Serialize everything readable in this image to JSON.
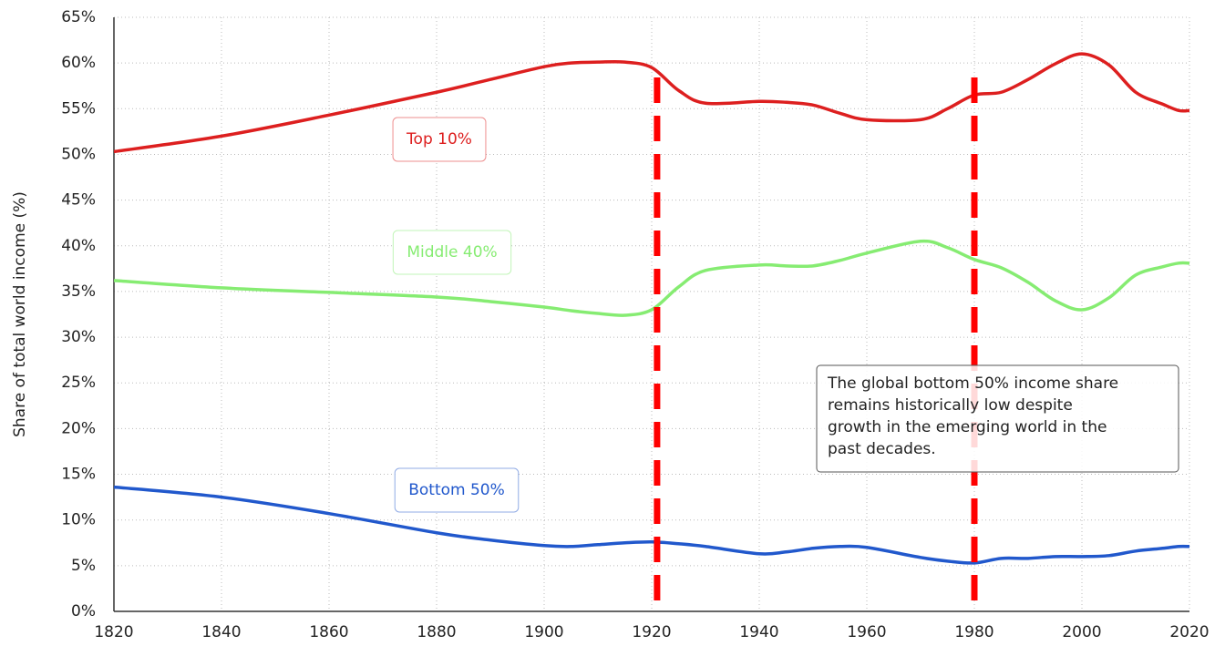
{
  "chart_data": {
    "type": "line",
    "y_label": "Share of total world income (%)",
    "x": [
      1820,
      1840,
      1860,
      1880,
      1890,
      1900,
      1905,
      1910,
      1915,
      1920,
      1925,
      1930,
      1940,
      1945,
      1950,
      1955,
      1960,
      1970,
      1975,
      1980,
      1985,
      1990,
      1995,
      2000,
      2005,
      2010,
      2015,
      2018,
      2020
    ],
    "series": [
      {
        "name": "Top 10%",
        "color": "#dd1f1f",
        "values": [
          50.3,
          52.0,
          54.3,
          56.8,
          58.2,
          59.6,
          60.0,
          60.1,
          60.1,
          59.5,
          57.0,
          55.6,
          55.8,
          55.7,
          55.4,
          54.5,
          53.8,
          53.8,
          55.0,
          56.5,
          56.8,
          58.2,
          59.9,
          61.0,
          59.8,
          56.8,
          55.5,
          54.8,
          54.8
        ]
      },
      {
        "name": "Middle 40%",
        "color": "#86ec72",
        "values": [
          36.2,
          35.4,
          34.9,
          34.4,
          33.9,
          33.3,
          32.9,
          32.6,
          32.4,
          33.0,
          35.5,
          37.3,
          37.9,
          37.8,
          37.8,
          38.4,
          39.2,
          40.5,
          39.8,
          38.5,
          37.6,
          36.0,
          34.0,
          33.0,
          34.3,
          36.8,
          37.7,
          38.1,
          38.1
        ]
      },
      {
        "name": "Bottom 50%",
        "color": "#2158cc",
        "values": [
          13.6,
          12.5,
          10.7,
          8.6,
          7.8,
          7.2,
          7.1,
          7.3,
          7.5,
          7.6,
          7.4,
          7.1,
          6.3,
          6.5,
          6.9,
          7.1,
          7.0,
          5.9,
          5.5,
          5.3,
          5.8,
          5.8,
          6.0,
          6.0,
          6.1,
          6.6,
          6.9,
          7.1,
          7.1
        ]
      }
    ],
    "vlines": {
      "color": "#ff0000",
      "x": [
        1921,
        1980
      ]
    },
    "annotation": [
      "The global bottom 50% income share",
      "remains historically low despite",
      "growth in the emerging world in the",
      "past decades."
    ],
    "xlim": [
      1820,
      2020
    ],
    "xticks": [
      1820,
      1840,
      1860,
      1880,
      1900,
      1920,
      1940,
      1960,
      1980,
      2000,
      2020
    ],
    "ylim": [
      0,
      65
    ],
    "yticks": [
      {
        "value": 0,
        "label": "0%"
      },
      {
        "value": 5,
        "label": "5%"
      },
      {
        "value": 10,
        "label": "10%"
      },
      {
        "value": 15,
        "label": "15%"
      },
      {
        "value": 20,
        "label": "20%"
      },
      {
        "value": 25,
        "label": "25%"
      },
      {
        "value": 30,
        "label": "30%"
      },
      {
        "value": 35,
        "label": "35%"
      },
      {
        "value": 40,
        "label": "40%"
      },
      {
        "value": 45,
        "label": "45%"
      },
      {
        "value": 50,
        "label": "50%"
      },
      {
        "value": 55,
        "label": "55%"
      },
      {
        "value": 60,
        "label": "60%"
      },
      {
        "value": 65,
        "label": "65%"
      }
    ],
    "grid": true
  }
}
